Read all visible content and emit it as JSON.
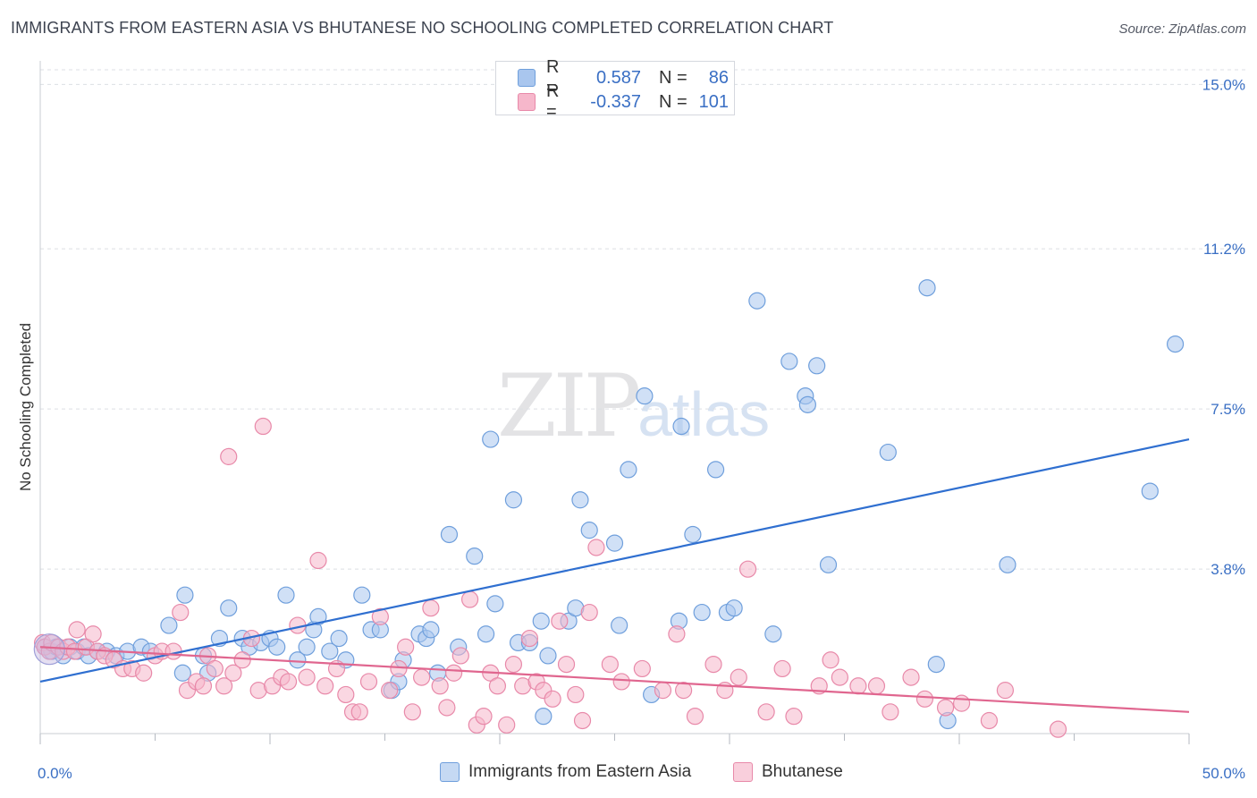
{
  "title": "IMMIGRANTS FROM EASTERN ASIA VS BHUTANESE NO SCHOOLING COMPLETED CORRELATION CHART",
  "source": "Source: ZipAtlas.com",
  "watermark": {
    "zip": "ZIP",
    "atlas": "atlas"
  },
  "legend": {
    "rows": [
      {
        "r_label": "R =",
        "r_value": "0.587",
        "n_label": "N =",
        "n_value": "86",
        "color": "#a9c6ee",
        "border": "#6f9fdc"
      },
      {
        "r_label": "R =",
        "r_value": "-0.337",
        "n_label": "N =",
        "n_value": "101",
        "color": "#f6b7cb",
        "border": "#e889a9"
      }
    ]
  },
  "bottom_legend": [
    {
      "label": "Immigrants from Eastern Asia",
      "color": "#c5d9f3",
      "border": "#6f9fdc"
    },
    {
      "label": "Bhutanese",
      "color": "#f9cfdc",
      "border": "#e889a9"
    }
  ],
  "chart_data": {
    "type": "scatter",
    "title": "IMMIGRANTS FROM EASTERN ASIA VS BHUTANESE NO SCHOOLING COMPLETED CORRELATION CHART",
    "xlabel": "",
    "ylabel": "No Schooling Completed",
    "xlim": [
      0,
      50
    ],
    "ylim": [
      0,
      15.4
    ],
    "x_tick_labels": [
      {
        "value": 0,
        "label": "0.0%"
      },
      {
        "value": 50,
        "label": "50.0%"
      }
    ],
    "y_ticks": [
      {
        "value": 3.8,
        "label": "3.8%"
      },
      {
        "value": 7.5,
        "label": "7.5%"
      },
      {
        "value": 11.2,
        "label": "11.2%"
      },
      {
        "value": 15.0,
        "label": "15.0%"
      }
    ],
    "grid": true,
    "series": [
      {
        "name": "Immigrants from Eastern Asia",
        "color": "#6f9fdc",
        "fill": "#a9c6ee",
        "trend": {
          "x0": 0,
          "y0": 1.2,
          "x1": 50,
          "y1": 6.8,
          "color": "#2f6fd0"
        },
        "points": [
          [
            0.2,
            2.0
          ],
          [
            0.5,
            1.9
          ],
          [
            0.7,
            2.0
          ],
          [
            1.0,
            1.8
          ],
          [
            1.3,
            2.0
          ],
          [
            1.6,
            1.9
          ],
          [
            1.9,
            2.0
          ],
          [
            2.1,
            1.8
          ],
          [
            2.5,
            1.9
          ],
          [
            2.9,
            1.9
          ],
          [
            3.3,
            1.8
          ],
          [
            3.8,
            1.9
          ],
          [
            4.4,
            2.0
          ],
          [
            4.8,
            1.9
          ],
          [
            5.6,
            2.5
          ],
          [
            6.2,
            1.4
          ],
          [
            6.3,
            3.2
          ],
          [
            7.1,
            1.8
          ],
          [
            7.3,
            1.4
          ],
          [
            7.8,
            2.2
          ],
          [
            8.2,
            2.9
          ],
          [
            8.8,
            2.2
          ],
          [
            9.1,
            2.0
          ],
          [
            9.6,
            2.1
          ],
          [
            10.0,
            2.2
          ],
          [
            10.3,
            2.0
          ],
          [
            10.7,
            3.2
          ],
          [
            11.2,
            1.7
          ],
          [
            11.6,
            2.0
          ],
          [
            11.9,
            2.4
          ],
          [
            12.1,
            2.7
          ],
          [
            12.6,
            1.9
          ],
          [
            13.0,
            2.2
          ],
          [
            13.3,
            1.7
          ],
          [
            14.0,
            3.2
          ],
          [
            14.4,
            2.4
          ],
          [
            14.8,
            2.4
          ],
          [
            15.3,
            1.0
          ],
          [
            15.6,
            1.2
          ],
          [
            15.8,
            1.7
          ],
          [
            16.5,
            2.3
          ],
          [
            16.8,
            2.2
          ],
          [
            17.0,
            2.4
          ],
          [
            17.3,
            1.4
          ],
          [
            17.8,
            4.6
          ],
          [
            18.2,
            2.0
          ],
          [
            18.9,
            4.1
          ],
          [
            19.4,
            2.3
          ],
          [
            19.6,
            6.8
          ],
          [
            19.8,
            3.0
          ],
          [
            20.6,
            5.4
          ],
          [
            20.8,
            2.1
          ],
          [
            21.3,
            2.1
          ],
          [
            21.8,
            2.6
          ],
          [
            21.9,
            0.4
          ],
          [
            22.1,
            1.8
          ],
          [
            23.0,
            2.6
          ],
          [
            23.3,
            2.9
          ],
          [
            23.5,
            5.4
          ],
          [
            23.9,
            4.7
          ],
          [
            25.0,
            4.4
          ],
          [
            25.2,
            2.5
          ],
          [
            25.6,
            6.1
          ],
          [
            26.3,
            7.8
          ],
          [
            26.6,
            0.9
          ],
          [
            27.8,
            2.6
          ],
          [
            27.9,
            7.1
          ],
          [
            28.4,
            4.6
          ],
          [
            28.8,
            2.8
          ],
          [
            29.4,
            6.1
          ],
          [
            29.9,
            2.8
          ],
          [
            30.2,
            2.9
          ],
          [
            31.2,
            10.0
          ],
          [
            31.9,
            2.3
          ],
          [
            32.6,
            8.6
          ],
          [
            33.3,
            7.8
          ],
          [
            33.4,
            7.6
          ],
          [
            33.8,
            8.5
          ],
          [
            34.3,
            3.9
          ],
          [
            36.9,
            6.5
          ],
          [
            38.6,
            10.3
          ],
          [
            39.0,
            1.6
          ],
          [
            39.5,
            0.3
          ],
          [
            42.1,
            3.9
          ],
          [
            48.3,
            5.6
          ],
          [
            49.4,
            9.0
          ]
        ]
      },
      {
        "name": "Bhutanese",
        "color": "#e889a9",
        "fill": "#f6b7cb",
        "trend": {
          "x0": 0,
          "y0": 2.0,
          "x1": 50,
          "y1": 0.5,
          "color": "#e0668f"
        },
        "points": [
          [
            0.1,
            2.1
          ],
          [
            0.2,
            2.0
          ],
          [
            0.4,
            1.9
          ],
          [
            0.5,
            2.1
          ],
          [
            0.8,
            2.0
          ],
          [
            1.0,
            1.9
          ],
          [
            1.2,
            2.0
          ],
          [
            1.5,
            1.9
          ],
          [
            1.6,
            2.4
          ],
          [
            2.0,
            2.0
          ],
          [
            2.3,
            2.3
          ],
          [
            2.5,
            1.9
          ],
          [
            2.8,
            1.8
          ],
          [
            3.2,
            1.7
          ],
          [
            3.6,
            1.5
          ],
          [
            4.0,
            1.5
          ],
          [
            4.5,
            1.4
          ],
          [
            5.0,
            1.8
          ],
          [
            5.3,
            1.9
          ],
          [
            5.8,
            1.9
          ],
          [
            6.1,
            2.8
          ],
          [
            6.4,
            1.0
          ],
          [
            6.8,
            1.2
          ],
          [
            7.1,
            1.1
          ],
          [
            7.3,
            1.8
          ],
          [
            7.6,
            1.5
          ],
          [
            8.0,
            1.1
          ],
          [
            8.2,
            6.4
          ],
          [
            8.4,
            1.4
          ],
          [
            8.8,
            1.7
          ],
          [
            9.2,
            2.2
          ],
          [
            9.5,
            1.0
          ],
          [
            9.7,
            7.1
          ],
          [
            10.1,
            1.1
          ],
          [
            10.5,
            1.3
          ],
          [
            10.8,
            1.2
          ],
          [
            11.2,
            2.5
          ],
          [
            11.6,
            1.3
          ],
          [
            12.1,
            4.0
          ],
          [
            12.4,
            1.1
          ],
          [
            12.9,
            1.5
          ],
          [
            13.3,
            0.9
          ],
          [
            13.6,
            0.5
          ],
          [
            13.9,
            0.5
          ],
          [
            14.3,
            1.2
          ],
          [
            14.8,
            2.7
          ],
          [
            15.2,
            1.0
          ],
          [
            15.6,
            1.5
          ],
          [
            15.9,
            2.0
          ],
          [
            16.2,
            0.5
          ],
          [
            16.6,
            1.3
          ],
          [
            17.0,
            2.9
          ],
          [
            17.4,
            1.1
          ],
          [
            17.7,
            0.6
          ],
          [
            18.0,
            1.4
          ],
          [
            18.3,
            1.8
          ],
          [
            18.7,
            3.1
          ],
          [
            19.0,
            0.2
          ],
          [
            19.3,
            0.4
          ],
          [
            19.6,
            1.4
          ],
          [
            19.9,
            1.1
          ],
          [
            20.3,
            0.2
          ],
          [
            20.6,
            1.6
          ],
          [
            21.0,
            1.1
          ],
          [
            21.3,
            2.2
          ],
          [
            21.6,
            1.2
          ],
          [
            21.9,
            1.0
          ],
          [
            22.3,
            0.8
          ],
          [
            22.6,
            2.6
          ],
          [
            22.9,
            1.6
          ],
          [
            23.3,
            0.9
          ],
          [
            23.6,
            0.3
          ],
          [
            23.9,
            2.8
          ],
          [
            24.2,
            4.3
          ],
          [
            24.8,
            1.6
          ],
          [
            25.3,
            1.2
          ],
          [
            26.2,
            1.5
          ],
          [
            27.1,
            1.0
          ],
          [
            27.7,
            2.3
          ],
          [
            28.0,
            1.0
          ],
          [
            28.5,
            0.4
          ],
          [
            29.3,
            1.6
          ],
          [
            29.8,
            1.0
          ],
          [
            30.4,
            1.3
          ],
          [
            30.8,
            3.8
          ],
          [
            31.6,
            0.5
          ],
          [
            32.3,
            1.5
          ],
          [
            32.8,
            0.4
          ],
          [
            33.9,
            1.1
          ],
          [
            34.4,
            1.7
          ],
          [
            34.8,
            1.3
          ],
          [
            35.6,
            1.1
          ],
          [
            36.4,
            1.1
          ],
          [
            37.0,
            0.5
          ],
          [
            37.9,
            1.3
          ],
          [
            38.5,
            0.8
          ],
          [
            39.4,
            0.6
          ],
          [
            40.1,
            0.7
          ],
          [
            41.3,
            0.3
          ],
          [
            42.0,
            1.0
          ],
          [
            44.3,
            0.1
          ]
        ]
      }
    ]
  }
}
